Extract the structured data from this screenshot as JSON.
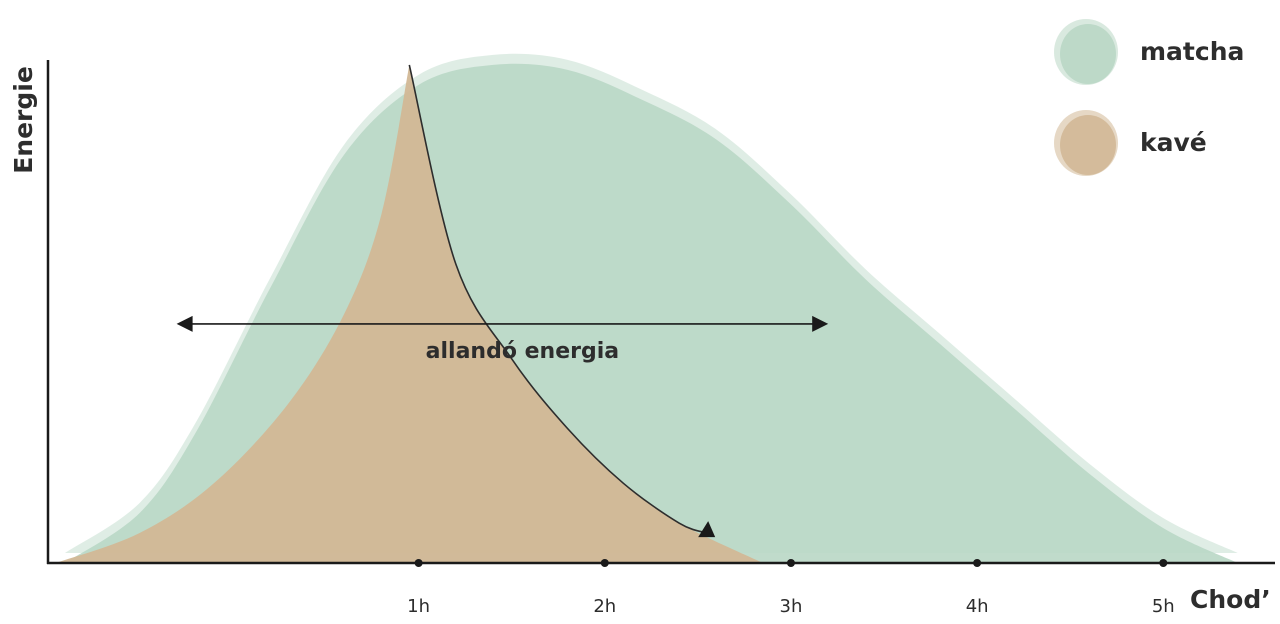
{
  "chart_data": {
    "type": "area",
    "xlabel": "Chod’",
    "ylabel": "Energie",
    "x_ticks": [
      {
        "label": "1h",
        "value": 1
      },
      {
        "label": "2h",
        "value": 2
      },
      {
        "label": "3h",
        "value": 3
      },
      {
        "label": "4h",
        "value": 4
      },
      {
        "label": "5h",
        "value": 5
      }
    ],
    "xlim": [
      -0.98,
      5.6
    ],
    "ylim": [
      0,
      1.04
    ],
    "series": [
      {
        "name": "matcha",
        "color": "#b9d7c5",
        "x": [
          -0.9,
          -0.5,
          -0.2,
          0.2,
          0.6,
          1.0,
          1.4,
          1.8,
          2.2,
          2.6,
          3.0,
          3.4,
          3.8,
          4.2,
          4.6,
          5.0,
          5.4
        ],
        "y": [
          0.0,
          0.1,
          0.26,
          0.55,
          0.82,
          0.96,
          1.0,
          0.99,
          0.93,
          0.85,
          0.72,
          0.57,
          0.44,
          0.31,
          0.18,
          0.07,
          0.0
        ]
      },
      {
        "name": "kavé",
        "color": "#d2b896",
        "x": [
          -0.95,
          -0.5,
          -0.1,
          0.3,
          0.6,
          0.8,
          0.95,
          1.2,
          1.5,
          1.8,
          2.1,
          2.4,
          2.85
        ],
        "y": [
          0.0,
          0.06,
          0.16,
          0.32,
          0.5,
          0.7,
          1.0,
          0.6,
          0.41,
          0.27,
          0.16,
          0.08,
          0.0
        ]
      }
    ],
    "annotations": [
      {
        "text": "allandó energia",
        "x_from": -0.3,
        "x_to": 3.2,
        "y": 0.48
      }
    ],
    "legend_position": "top-right",
    "grid": false
  }
}
